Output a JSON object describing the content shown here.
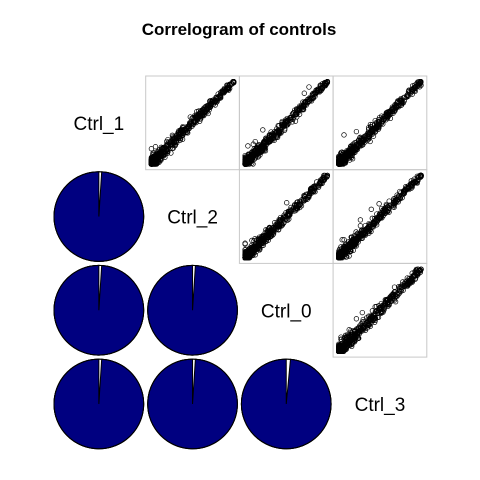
{
  "chart_data": {
    "type": "correlogram",
    "title": "Correlogram of controls",
    "variables": [
      "Ctrl_1",
      "Ctrl_2",
      "Ctrl_0",
      "Ctrl_3"
    ],
    "upper_panel": "scatter",
    "lower_panel": "pie",
    "diagonal": "variable name",
    "pie_fill_color": "#000080",
    "pie_remainder_color": "#ffffff",
    "panel_border_color": "#c8c8c8",
    "correlations": [
      {
        "row": "Ctrl_2",
        "col": "Ctrl_1",
        "r": 0.99
      },
      {
        "row": "Ctrl_0",
        "col": "Ctrl_1",
        "r": 0.99
      },
      {
        "row": "Ctrl_0",
        "col": "Ctrl_2",
        "r": 0.99
      },
      {
        "row": "Ctrl_3",
        "col": "Ctrl_1",
        "r": 0.99
      },
      {
        "row": "Ctrl_3",
        "col": "Ctrl_2",
        "r": 0.99
      },
      {
        "row": "Ctrl_3",
        "col": "Ctrl_0",
        "r": 0.985
      }
    ]
  }
}
